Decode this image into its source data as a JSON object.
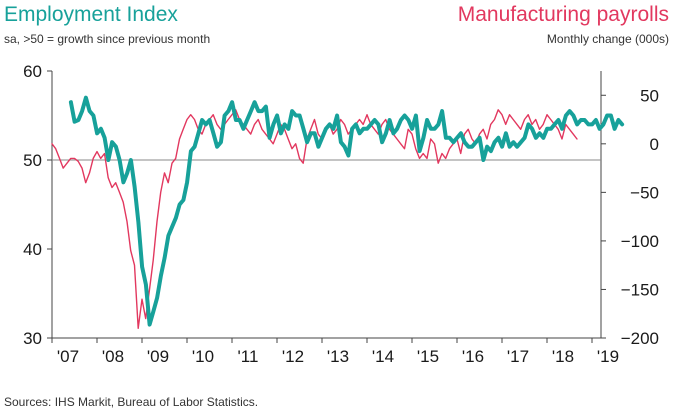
{
  "chart_data": {
    "type": "line",
    "title_left": "Employment Index",
    "subtitle_left": "sa, >50 = growth since previous month",
    "title_right": "Manufacturing payrolls",
    "subtitle_right": "Monthly change (000s)",
    "source": "Sources: IHS Markit, Bureau of Labor Statistics.",
    "x_ticks": [
      "'07",
      "'08",
      "'09",
      "'10",
      "'11",
      "'12",
      "'13",
      "'14",
      "'15",
      "'16",
      "'17",
      "'18",
      "'19"
    ],
    "y_left": {
      "label": "Employment Index",
      "ylim": [
        30,
        60
      ],
      "ticks": [
        "30",
        "40",
        "50",
        "60"
      ]
    },
    "y_right": {
      "label": "Monthly change (000s)",
      "ylim": [
        -200,
        75
      ],
      "ticks": [
        "-200",
        "-150",
        "-100",
        "-50",
        "0",
        "50"
      ]
    },
    "colors": {
      "index": "#17A19A",
      "payrolls": "#E2385F",
      "axis": "#444444"
    },
    "series": [
      {
        "name": "Employment Index",
        "axis": "left",
        "start": 2007.42,
        "step": 0.08333,
        "values": [
          56.5,
          54.3,
          54.5,
          55.5,
          57.0,
          55.5,
          55.0,
          53.0,
          53.5,
          52.5,
          50.0,
          52.0,
          51.5,
          50.0,
          47.5,
          48.5,
          50.0,
          47.0,
          43.0,
          38.0,
          36.0,
          31.5,
          33.0,
          34.5,
          37.0,
          39.0,
          41.5,
          42.5,
          43.5,
          45.0,
          45.5,
          47.5,
          51.0,
          51.5,
          53.0,
          54.5,
          54.0,
          54.5,
          53.0,
          51.5,
          52.0,
          55.0,
          55.5,
          56.5,
          54.5,
          54.5,
          53.5,
          54.5,
          55.5,
          56.5,
          55.5,
          55.5,
          56.0,
          52.5,
          54.0,
          55.0,
          53.0,
          54.0,
          53.5,
          55.5,
          55.0,
          55.0,
          53.5,
          52.0,
          53.0,
          53.0,
          51.5,
          52.5,
          53.5,
          54.0,
          53.5,
          55.0,
          52.0,
          51.5,
          50.5,
          53.5,
          54.0,
          53.0,
          53.5,
          53.5,
          54.0,
          54.5,
          54.0,
          52.0,
          53.0,
          54.5,
          53.0,
          53.5,
          54.5,
          55.0,
          54.5,
          53.5,
          55.0,
          51.0,
          52.5,
          54.5,
          53.5,
          53.5,
          54.0,
          55.5,
          52.5,
          52.5,
          52.0,
          52.5,
          53.0,
          52.0,
          51.5,
          51.5,
          52.0,
          52.5,
          50.0,
          51.5,
          51.0,
          52.0,
          52.5,
          51.5,
          53.0,
          51.5,
          52.0,
          51.5,
          52.0,
          52.5,
          54.0,
          53.5,
          52.5,
          53.0,
          52.5,
          53.5,
          53.5,
          54.0,
          54.5,
          53.5,
          55.0,
          55.5,
          55.0,
          54.0,
          54.5,
          54.5,
          54.0,
          54.0,
          54.5,
          53.5,
          54.0,
          55.0,
          55.0,
          53.5,
          54.5,
          54.0
        ]
      },
      {
        "name": "Manufacturing payrolls",
        "axis": "right",
        "start": 2007.0,
        "step": 0.08333,
        "values": [
          0,
          -5,
          -15,
          -25,
          -20,
          -15,
          -15,
          -18,
          -25,
          -40,
          -30,
          -15,
          -8,
          -15,
          -10,
          -35,
          -45,
          -40,
          -50,
          -60,
          -80,
          -110,
          -125,
          -190,
          -160,
          -180,
          -150,
          -120,
          -80,
          -50,
          -30,
          -40,
          -20,
          -15,
          5,
          15,
          25,
          30,
          25,
          15,
          10,
          20,
          25,
          30,
          20,
          15,
          20,
          25,
          30,
          35,
          25,
          20,
          15,
          10,
          20,
          25,
          15,
          10,
          5,
          0,
          10,
          20,
          15,
          5,
          -5,
          0,
          -15,
          -20,
          5,
          15,
          25,
          10,
          5,
          15,
          20,
          10,
          15,
          25,
          20,
          10,
          15,
          20,
          25,
          20,
          30,
          20,
          15,
          10,
          20,
          25,
          15,
          10,
          5,
          0,
          -5,
          15,
          10,
          -5,
          -15,
          -10,
          -15,
          5,
          0,
          -20,
          -10,
          -15,
          -5,
          0,
          5,
          -10,
          10,
          15,
          5,
          0,
          10,
          15,
          5,
          20,
          25,
          35,
          30,
          20,
          30,
          25,
          20,
          15,
          25,
          30,
          20,
          25,
          15,
          20,
          30,
          25,
          20,
          15,
          5,
          20,
          15,
          10,
          5
        ]
      }
    ]
  }
}
